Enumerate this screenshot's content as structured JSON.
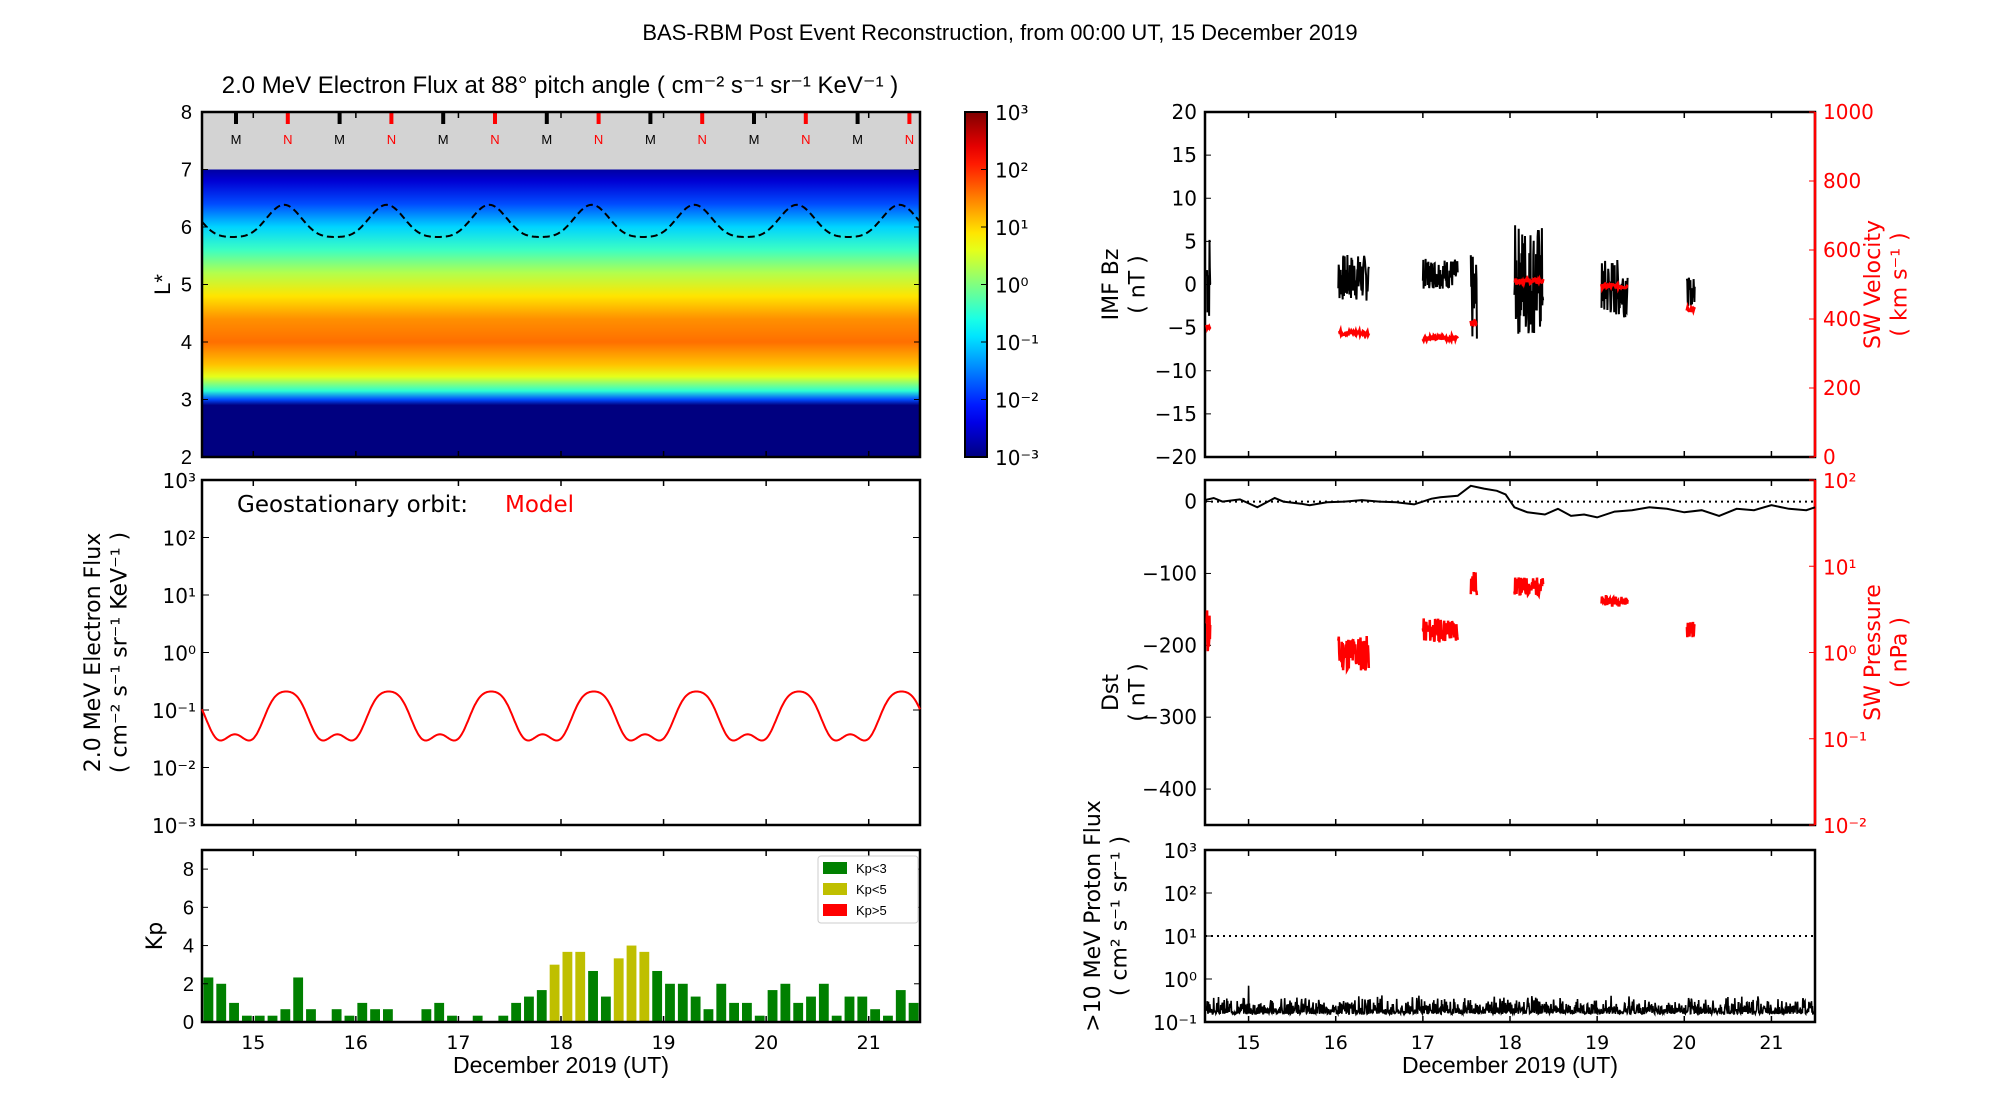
{
  "suptitle": "BAS-RBM Post Event Reconstruction, from 00:00 UT, 15 December 2019",
  "chart_data": [
    {
      "id": "lstar-flux",
      "type": "heatmap",
      "title": "2.0 MeV Electron Flux at 88° pitch angle ( cm⁻² s⁻¹ sr⁻¹ KeV⁻¹ )",
      "ylabel": "L*",
      "ylim": [
        2,
        8
      ],
      "yticks": [
        "2",
        "3",
        "4",
        "5",
        "6",
        "7",
        "8"
      ],
      "xlim": [
        14.5,
        21.5
      ],
      "colorbar": {
        "scale": "log",
        "range": [
          0.001,
          1000
        ],
        "ticks": [
          "10³",
          "10²",
          "10¹",
          "10⁰",
          "10⁻¹",
          "10⁻²",
          "10⁻³"
        ],
        "colormap": "jet"
      },
      "no_data_band": {
        "L_min": 7,
        "L_max": 8,
        "color": "#d3d3d3"
      },
      "midnight_noon_markers": {
        "labels": [
          "M",
          "N",
          "M",
          "N",
          "M",
          "N",
          "M",
          "N",
          "M",
          "N",
          "M",
          "N",
          "M",
          "N"
        ],
        "colors": {
          "M": "#000000",
          "N": "#ff0000"
        }
      },
      "profile_log10_flux_by_L": [
        {
          "L": 2.0,
          "v": -3
        },
        {
          "L": 2.9,
          "v": -3
        },
        {
          "L": 3.0,
          "v": -1.8
        },
        {
          "L": 3.15,
          "v": -0.5
        },
        {
          "L": 3.4,
          "v": 0.6
        },
        {
          "L": 3.6,
          "v": 1.1
        },
        {
          "L": 4.0,
          "v": 1.6
        },
        {
          "L": 4.4,
          "v": 1.4
        },
        {
          "L": 4.8,
          "v": 0.9
        },
        {
          "L": 5.2,
          "v": 0.3
        },
        {
          "L": 5.6,
          "v": -0.4
        },
        {
          "L": 6.0,
          "v": -1.0
        },
        {
          "L": 6.4,
          "v": -1.8
        },
        {
          "L": 6.8,
          "v": -2.5
        },
        {
          "L": 7.0,
          "v": -2.8
        }
      ],
      "magnetopause_dashed": {
        "mean_L": 6.05,
        "amplitude": 0.28,
        "period_days": 1,
        "peak_day_phase": 0.3
      }
    },
    {
      "id": "geo-flux",
      "type": "line",
      "ylabel": "2.0 MeV Electron Flux\n( cm⁻² s⁻¹ sr⁻¹ KeV⁻¹ )",
      "ylim": [
        0.001,
        1000
      ],
      "yscale": "log",
      "yticks": [
        "10⁻³",
        "10⁻²",
        "10⁻¹",
        "10⁰",
        "10¹",
        "10²",
        "10³"
      ],
      "xlim": [
        14.5,
        21.5
      ],
      "annotation": {
        "label": "Geostationary orbit:",
        "value": "Model",
        "value_color": "#ff0000"
      },
      "series": [
        {
          "name": "Model",
          "color": "#ff0000",
          "daily_pattern": {
            "max": 0.21,
            "shoulder_high": 0.075,
            "min": 0.022,
            "peak_phase": 0.32
          }
        }
      ]
    },
    {
      "id": "kp",
      "type": "bar",
      "ylabel": "Kp",
      "xlabel": "December 2019 (UT)",
      "ylim": [
        0,
        9
      ],
      "yticks": [
        "0",
        "2",
        "4",
        "6",
        "8"
      ],
      "xlim": [
        14.5,
        21.5
      ],
      "xticks": [
        "15",
        "16",
        "17",
        "18",
        "19",
        "20",
        "21"
      ],
      "bin_hours": 3,
      "start": 14.5,
      "legend": {
        "position": "top-right",
        "items": [
          {
            "label": "Kp<3",
            "color": "#008000"
          },
          {
            "label": "Kp<5",
            "color": "#bfbf00"
          },
          {
            "label": "Kp>5",
            "color": "#ff0000"
          }
        ]
      },
      "values": [
        2.33,
        2.0,
        1.0,
        0.33,
        0.33,
        0.33,
        0.67,
        2.33,
        0.67,
        0,
        0.67,
        0.33,
        1.0,
        0.67,
        0.67,
        0,
        0,
        0.67,
        1.0,
        0.33,
        0,
        0.33,
        0,
        0.33,
        1.0,
        1.33,
        1.67,
        3.0,
        3.67,
        3.67,
        2.67,
        1.33,
        3.33,
        4.0,
        3.67,
        2.67,
        2.0,
        2.0,
        1.33,
        0.67,
        2.0,
        1.0,
        1.0,
        0.33,
        1.67,
        2.0,
        1.0,
        1.33,
        2.0,
        0.33,
        1.33,
        1.33,
        0.67,
        0.33,
        1.67,
        1.0,
        1.33
      ]
    },
    {
      "id": "imf-sw",
      "type": "line",
      "ylabel": "IMF Bz\n( nT )",
      "ylim": [
        -20,
        20
      ],
      "yticks": [
        "20",
        "15",
        "10",
        "5",
        "0",
        "−5",
        "−10",
        "−15",
        "−20"
      ],
      "y2label": "SW Velocity\n( km s⁻¹ )",
      "y2lim": [
        0,
        1000
      ],
      "y2ticks": [
        "1000",
        "800",
        "600",
        "400",
        "200",
        "0"
      ],
      "xlim": [
        14.5,
        21.5
      ],
      "series": [
        {
          "name": "IMF Bz",
          "color": "#000000",
          "axis": "left",
          "segments": [
            {
              "x": [
                14.52,
                14.56
              ],
              "y_lo": -4.5,
              "y_hi": 6.5
            },
            {
              "x": [
                16.03,
                16.38
              ],
              "y_lo": -2.0,
              "y_hi": 3.5
            },
            {
              "x": [
                17.0,
                17.4
              ],
              "y_lo": -0.5,
              "y_hi": 3.0
            },
            {
              "x": [
                17.55,
                17.62
              ],
              "y_lo": -6.8,
              "y_hi": 3.5
            },
            {
              "x": [
                18.05,
                18.38
              ],
              "y_lo": -6.0,
              "y_hi": 7.0
            },
            {
              "x": [
                19.05,
                19.35
              ],
              "y_lo": -3.8,
              "y_hi": 3.0
            },
            {
              "x": [
                20.03,
                20.12
              ],
              "y_lo": -2.5,
              "y_hi": 0.8
            }
          ]
        },
        {
          "name": "SW Velocity",
          "color": "#ff0000",
          "axis": "right",
          "segments": [
            {
              "x": [
                14.52,
                14.56
              ],
              "v": 380
            },
            {
              "x": [
                16.03,
                16.38
              ],
              "v": 360
            },
            {
              "x": [
                17.0,
                17.4
              ],
              "v": 345
            },
            {
              "x": [
                17.55,
                17.62
              ],
              "v": 390
            },
            {
              "x": [
                18.05,
                18.38
              ],
              "v": 510
            },
            {
              "x": [
                19.05,
                19.35
              ],
              "v": 495
            },
            {
              "x": [
                20.03,
                20.12
              ],
              "v": 430
            }
          ]
        }
      ]
    },
    {
      "id": "dst-pressure",
      "type": "line",
      "ylabel": "Dst\n( nT )",
      "ylim": [
        -450,
        30
      ],
      "yticks": [
        "0",
        "−100",
        "−200",
        "−300",
        "−400"
      ],
      "y2label": "SW Pressure\n( nPa )",
      "y2lim": [
        0.01,
        100
      ],
      "y2scale": "log",
      "y2ticks": [
        "10²",
        "10¹",
        "10⁰",
        "10⁻¹",
        "10⁻²"
      ],
      "xlim": [
        14.5,
        21.5
      ],
      "reference_line": {
        "y": 0,
        "style": "dotted"
      },
      "series": [
        {
          "name": "Dst",
          "color": "#000000",
          "x": [
            14.5,
            14.6,
            14.7,
            14.9,
            15.1,
            15.3,
            15.4,
            15.6,
            15.7,
            15.9,
            16.1,
            16.3,
            16.5,
            16.7,
            16.9,
            17.1,
            17.2,
            17.4,
            17.55,
            17.7,
            17.85,
            17.95,
            18.05,
            18.2,
            18.4,
            18.55,
            18.7,
            18.85,
            19.0,
            19.2,
            19.4,
            19.6,
            19.8,
            20.0,
            20.2,
            20.4,
            20.6,
            20.8,
            21.0,
            21.2,
            21.4,
            21.5
          ],
          "y": [
            2,
            5,
            0,
            3,
            -8,
            5,
            0,
            -3,
            -5,
            -1,
            0,
            2,
            0,
            -1,
            -4,
            4,
            6,
            8,
            22,
            18,
            15,
            10,
            -8,
            -15,
            -18,
            -10,
            -20,
            -18,
            -22,
            -14,
            -12,
            -8,
            -10,
            -15,
            -12,
            -20,
            -10,
            -12,
            -5,
            -10,
            -12,
            -8
          ]
        },
        {
          "name": "SW Pressure",
          "color": "#ff0000",
          "axis": "right",
          "segments": [
            {
              "x": [
                14.52,
                14.56
              ],
              "lo": 0.9,
              "hi": 3.5
            },
            {
              "x": [
                16.03,
                16.38
              ],
              "lo": 0.6,
              "hi": 1.6
            },
            {
              "x": [
                17.0,
                17.4
              ],
              "lo": 1.3,
              "hi": 2.5
            },
            {
              "x": [
                17.55,
                17.62
              ],
              "lo": 4.5,
              "hi": 9.0
            },
            {
              "x": [
                18.05,
                18.38
              ],
              "lo": 4.5,
              "hi": 7.5
            },
            {
              "x": [
                19.05,
                19.35
              ],
              "lo": 3.5,
              "hi": 4.5
            },
            {
              "x": [
                20.03,
                20.12
              ],
              "lo": 1.5,
              "hi": 2.3
            }
          ]
        }
      ]
    },
    {
      "id": "proton-flux",
      "type": "line",
      "ylabel": ">10 MeV Proton Flux\n( cm² s⁻¹ sr⁻¹ )",
      "xlabel": "December 2019 (UT)",
      "ylim": [
        0.1,
        1000
      ],
      "yscale": "log",
      "yticks": [
        "10³",
        "10²",
        "10¹",
        "10⁰",
        "10⁻¹"
      ],
      "xlim": [
        14.5,
        21.5
      ],
      "xticks": [
        "15",
        "16",
        "17",
        "18",
        "19",
        "20",
        "21"
      ],
      "reference_line": {
        "y": 10,
        "style": "dotted"
      },
      "series": [
        {
          "name": ">10 MeV protons",
          "color": "#000000",
          "baseline": 0.18,
          "noise_max": 0.38,
          "spike": {
            "x": 15.0,
            "y": 0.7
          }
        }
      ]
    }
  ]
}
